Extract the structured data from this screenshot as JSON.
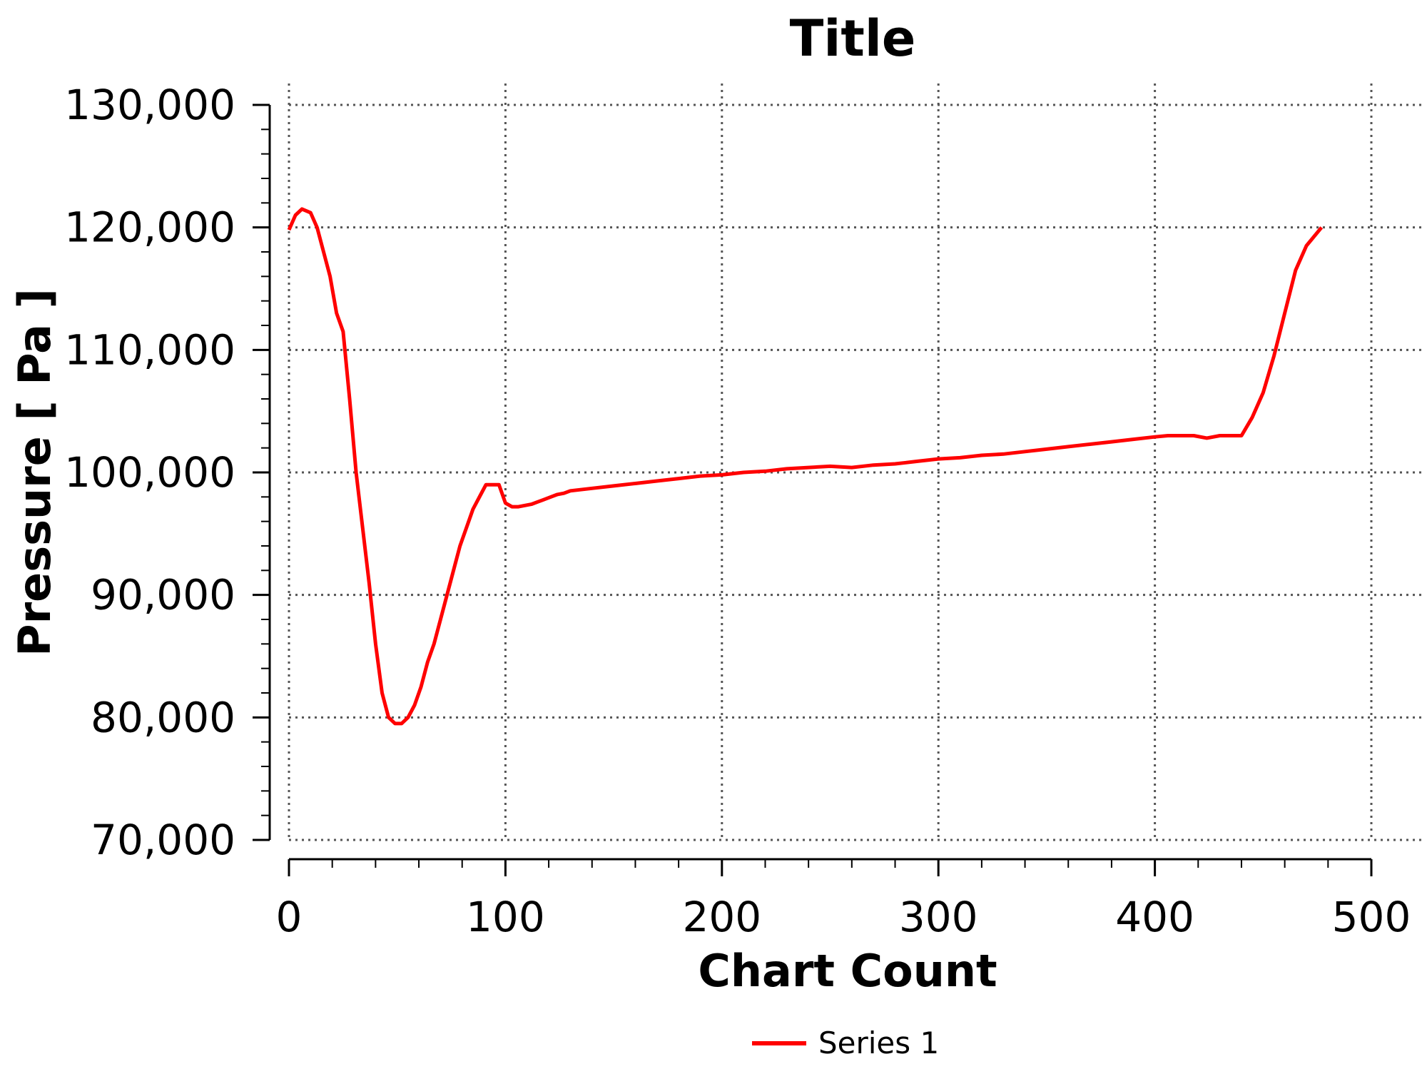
{
  "chart_data": {
    "type": "line",
    "title": "Title",
    "xlabel": "Chart Count",
    "ylabel": "Pressure [ Pa ]",
    "xlim": [
      0,
      500
    ],
    "ylim": [
      70000,
      130000
    ],
    "x_ticks": [
      0,
      100,
      200,
      300,
      400,
      500
    ],
    "x_tick_labels": [
      "0",
      "100",
      "200",
      "300",
      "400",
      "500"
    ],
    "y_ticks": [
      70000,
      80000,
      90000,
      100000,
      110000,
      120000,
      130000
    ],
    "y_tick_labels": [
      "70,000",
      "80,000",
      "90,000",
      "100,000",
      "110,000",
      "120,000",
      "130,000"
    ],
    "grid": true,
    "legend_position": "bottom-center",
    "series": [
      {
        "name": "Series 1",
        "color": "#ff0000",
        "x": [
          0,
          3,
          6,
          10,
          13,
          16,
          19,
          22,
          25,
          28,
          31,
          34,
          37,
          40,
          43,
          46,
          49,
          52,
          55,
          58,
          61,
          64,
          67,
          70,
          73,
          76,
          79,
          82,
          85,
          88,
          91,
          94,
          97,
          100,
          103,
          106,
          109,
          112,
          115,
          118,
          121,
          124,
          127,
          130,
          140,
          150,
          160,
          170,
          180,
          190,
          200,
          210,
          220,
          230,
          240,
          250,
          260,
          270,
          280,
          285,
          290,
          300,
          310,
          320,
          330,
          340,
          350,
          360,
          370,
          380,
          390,
          400,
          406,
          412,
          418,
          424,
          430,
          436,
          440,
          445,
          450,
          455,
          460,
          465,
          470,
          477
        ],
        "y": [
          119800,
          121000,
          121500,
          121200,
          120000,
          118000,
          116000,
          113000,
          111500,
          106000,
          100000,
          95500,
          91000,
          86000,
          82000,
          80000,
          79500,
          79500,
          80000,
          81000,
          82500,
          84500,
          86000,
          88000,
          90000,
          92000,
          94000,
          95500,
          97000,
          98000,
          99000,
          99000,
          99000,
          97500,
          97200,
          97200,
          97300,
          97400,
          97600,
          97800,
          98000,
          98200,
          98300,
          98500,
          98700,
          98900,
          99100,
          99300,
          99500,
          99700,
          99800,
          100000,
          100100,
          100300,
          100400,
          100500,
          100400,
          100600,
          100700,
          100800,
          100900,
          101100,
          101200,
          101400,
          101500,
          101700,
          101900,
          102100,
          102300,
          102500,
          102700,
          102900,
          103000,
          103000,
          103000,
          102800,
          103000,
          103000,
          103000,
          104500,
          106500,
          109500,
          113000,
          116500,
          118500,
          120000
        ]
      }
    ]
  }
}
